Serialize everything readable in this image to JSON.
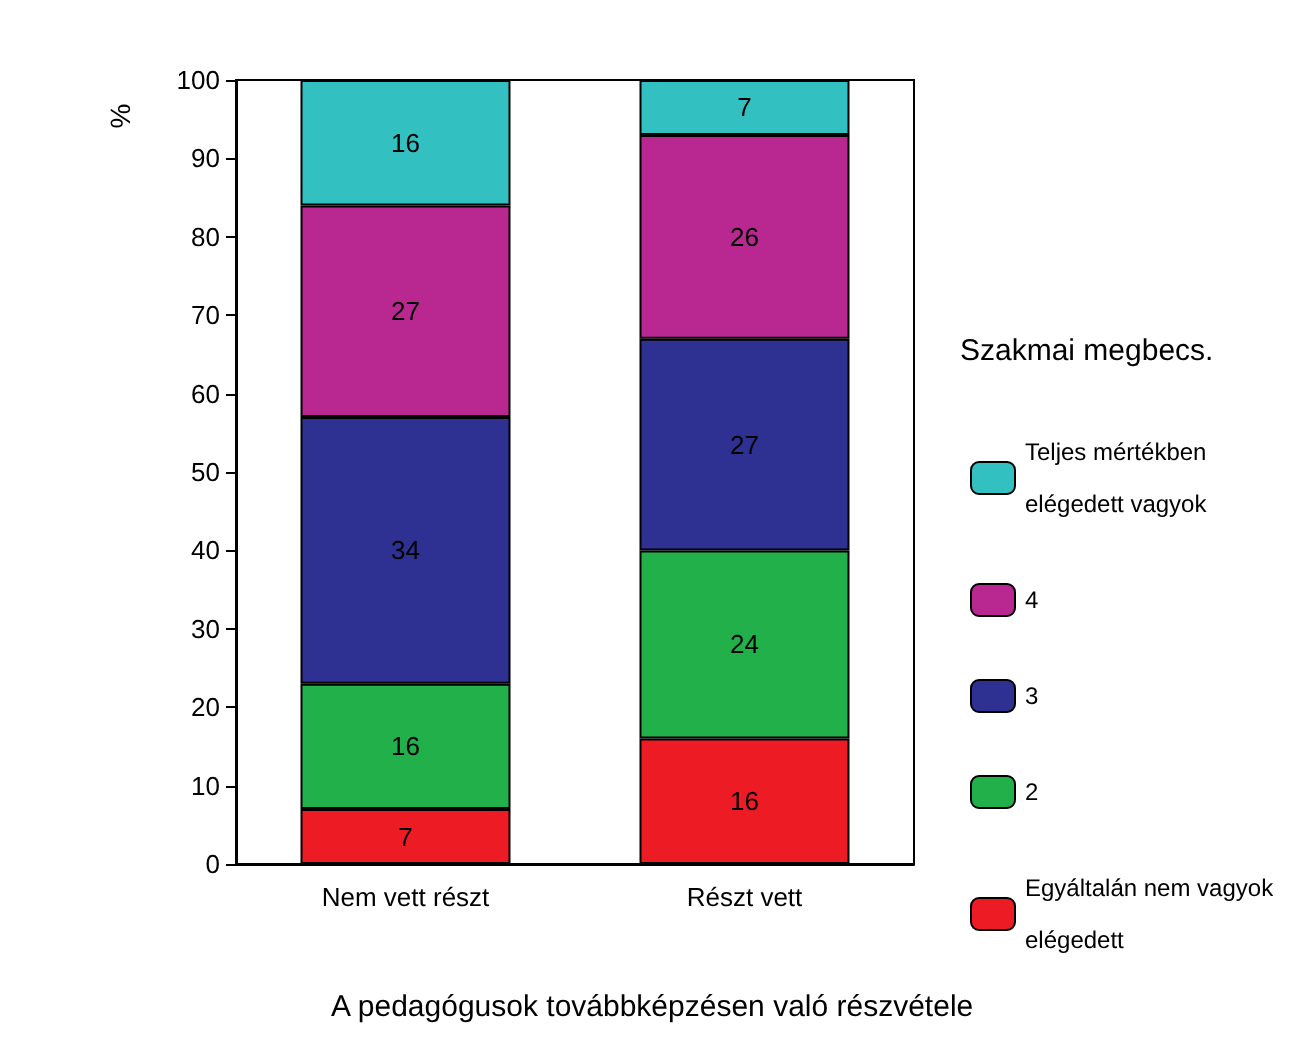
{
  "chart_data": {
    "type": "bar",
    "stacked": true,
    "xlabel": "A pedagógusok továbbképzésen való részvétele",
    "ylabel": "%",
    "legend_title": "Szakmai megbecs.",
    "categories": [
      "Nem vett részt",
      "Részt vett"
    ],
    "series": [
      {
        "name": "Egyáltalán nem vagyok elégedett",
        "color": "#ed1c24",
        "values": [
          7,
          16
        ]
      },
      {
        "name": "2",
        "color": "#22b04b",
        "values": [
          16,
          24
        ]
      },
      {
        "name": "3",
        "color": "#2e3192",
        "values": [
          34,
          27
        ]
      },
      {
        "name": "4",
        "color": "#b82890",
        "values": [
          27,
          26
        ]
      },
      {
        "name": "Teljes mértékben elégedett vagyok",
        "color": "#33c0c0",
        "values": [
          16,
          7
        ]
      }
    ],
    "ylim": [
      0,
      100
    ],
    "yticks": [
      0,
      10,
      20,
      30,
      40,
      50,
      60,
      70,
      80,
      90,
      100
    ],
    "data_labels": true,
    "grid": false,
    "legend": "right"
  }
}
